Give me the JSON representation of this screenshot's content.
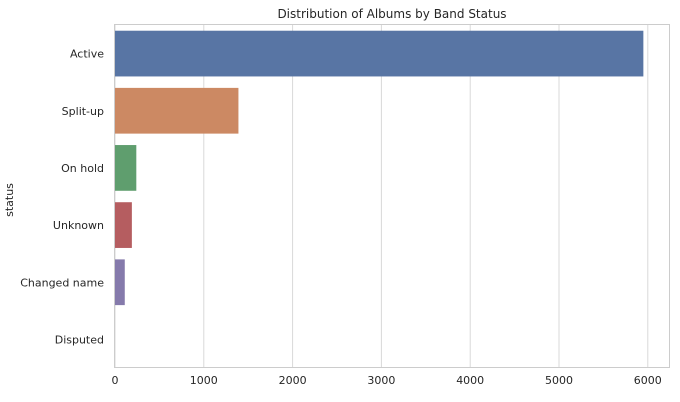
{
  "chart_data": {
    "type": "bar",
    "orientation": "horizontal",
    "title": "Distribution of Albums by Band Status",
    "xlabel": "",
    "ylabel": "status",
    "categories": [
      "Active",
      "Split-up",
      "On hold",
      "Unknown",
      "Changed name",
      "Disputed"
    ],
    "values": [
      5950,
      1390,
      240,
      190,
      110,
      0
    ],
    "colors": [
      "#5875a4",
      "#cc8963",
      "#5f9e6e",
      "#b55d60",
      "#857aab",
      "#8d7866"
    ],
    "xlim": [
      0,
      6250
    ],
    "xticks": [
      0,
      1000,
      2000,
      3000,
      4000,
      5000,
      6000
    ],
    "grid": true,
    "legend": "none"
  }
}
